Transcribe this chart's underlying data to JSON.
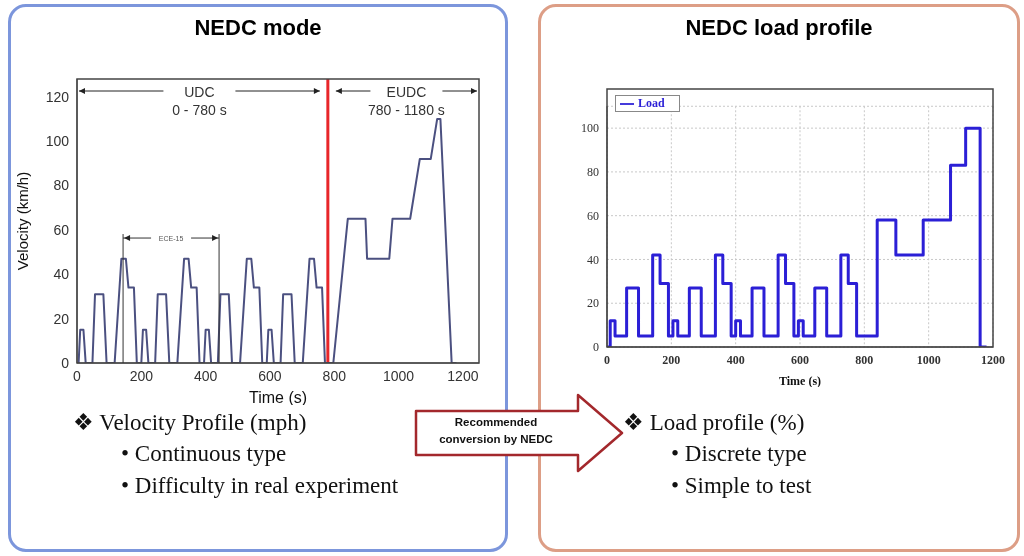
{
  "chart_data": [
    {
      "type": "line",
      "title": "NEDC mode",
      "xlabel": "Time (s)",
      "ylabel": "Velocity (km/h)",
      "xlim": [
        0,
        1250
      ],
      "xticks": [
        0,
        200,
        400,
        600,
        800,
        1000,
        1200
      ],
      "ylim": [
        0,
        128
      ],
      "yticks": [
        0,
        20,
        40,
        60,
        80,
        100,
        120
      ],
      "grid": false,
      "legend": false,
      "marker": "none",
      "line_style": "solid",
      "x": [
        0,
        5,
        10,
        20,
        27,
        48,
        56,
        82,
        92,
        117,
        138,
        152,
        160,
        177,
        186,
        195,
        200,
        205,
        215,
        222,
        243,
        251,
        277,
        287,
        312,
        333,
        347,
        355,
        372,
        381,
        390,
        395,
        400,
        410,
        417,
        438,
        446,
        472,
        482,
        507,
        528,
        542,
        550,
        567,
        576,
        585,
        590,
        595,
        605,
        612,
        633,
        641,
        667,
        677,
        702,
        723,
        737,
        745,
        762,
        771,
        797,
        842,
        897,
        902,
        971,
        981,
        1036,
        1066,
        1100,
        1120,
        1130,
        1165,
        1180
      ],
      "series": [
        {
          "color": "#4b5080",
          "values": [
            0,
            0,
            15,
            15,
            0,
            0,
            31,
            31,
            0,
            0,
            47,
            47,
            34,
            34,
            0,
            0,
            0,
            15,
            15,
            0,
            0,
            31,
            31,
            0,
            0,
            47,
            47,
            34,
            34,
            0,
            0,
            0,
            15,
            15,
            0,
            0,
            31,
            31,
            0,
            0,
            47,
            47,
            34,
            34,
            0,
            0,
            0,
            15,
            15,
            0,
            0,
            31,
            31,
            0,
            0,
            47,
            47,
            34,
            34,
            0,
            0,
            65,
            65,
            47,
            47,
            65,
            65,
            92,
            92,
            110,
            110,
            0,
            0
          ]
        }
      ],
      "ref_lines": [
        {
          "axis": "x",
          "value": 780,
          "color": "#e8262a"
        }
      ],
      "annotations": [
        "UDC",
        "0 - 780 s",
        "EUDC",
        "780 - 1180 s",
        "ECE-15",
        "❖ Velocity Profile (mph)",
        "• Continuous type",
        "• Difficulty in real experiment",
        "Recommended conversion by NEDC"
      ]
    },
    {
      "type": "step",
      "title": "NEDC load profile",
      "xlabel": "Time (s)",
      "xlim": [
        0,
        1200
      ],
      "xticks": [
        0,
        200,
        400,
        600,
        800,
        1000,
        1200
      ],
      "ylim": [
        0,
        110
      ],
      "yticks": [
        0,
        20,
        40,
        60,
        80,
        100
      ],
      "grid": true,
      "legend": "top left",
      "marker": "none",
      "line_style": "solid",
      "x": [
        0,
        10,
        25,
        61,
        98,
        142,
        165,
        191,
        205,
        220,
        256,
        293,
        337,
        360,
        386,
        400,
        415,
        451,
        488,
        532,
        555,
        581,
        595,
        610,
        646,
        683,
        727,
        750,
        776,
        840,
        898,
        983,
        1068,
        1115,
        1160,
        1180
      ],
      "series": [
        {
          "name": "Load",
          "color": "#2b1fd6",
          "values": [
            0,
            12,
            5,
            27,
            5,
            42,
            29,
            5,
            12,
            5,
            27,
            5,
            42,
            29,
            5,
            12,
            5,
            27,
            5,
            42,
            29,
            5,
            12,
            5,
            27,
            5,
            42,
            29,
            5,
            58,
            42,
            58,
            83,
            100,
            0,
            0
          ]
        }
      ],
      "annotations": [
        "❖ Load profile (%)",
        "• Discrete type",
        "• Simple to test"
      ]
    }
  ]
}
